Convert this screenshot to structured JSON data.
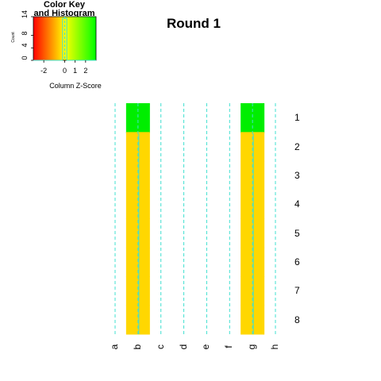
{
  "chart_data": {
    "type": "heatmap",
    "title": "Round 1",
    "columns": [
      "a",
      "b",
      "c",
      "d",
      "e",
      "f",
      "g",
      "h"
    ],
    "rows": [
      "1",
      "2",
      "3",
      "4",
      "5",
      "6",
      "7",
      "8"
    ],
    "colored_cells": [
      {
        "row": "1",
        "column": "b",
        "color": "#00ee00"
      },
      {
        "row": "1",
        "column": "g",
        "color": "#00ee00"
      },
      {
        "row": "2",
        "column": "b",
        "color": "#ffd700"
      },
      {
        "row": "2",
        "column": "g",
        "color": "#ffd700"
      },
      {
        "row": "3",
        "column": "b",
        "color": "#ffd700"
      },
      {
        "row": "3",
        "column": "g",
        "color": "#ffd700"
      },
      {
        "row": "4",
        "column": "b",
        "color": "#ffd700"
      },
      {
        "row": "4",
        "column": "g",
        "color": "#ffd700"
      },
      {
        "row": "5",
        "column": "b",
        "color": "#ffd700"
      },
      {
        "row": "5",
        "column": "g",
        "color": "#ffd700"
      },
      {
        "row": "6",
        "column": "b",
        "color": "#ffd700"
      },
      {
        "row": "6",
        "column": "g",
        "color": "#ffd700"
      },
      {
        "row": "7",
        "column": "b",
        "color": "#ffd700"
      },
      {
        "row": "7",
        "column": "g",
        "color": "#ffd700"
      },
      {
        "row": "8",
        "column": "b",
        "color": "#ffd700"
      },
      {
        "row": "8",
        "column": "g",
        "color": "#ffd700"
      }
    ],
    "trace_color": "#40e0d0",
    "color_key": {
      "title_line1": "Color Key",
      "title_line2": "and Histogram",
      "xlabel": "Column Z-Score",
      "ylabel": "Count",
      "x_ticks": [
        "-2",
        "0",
        "1",
        "2"
      ],
      "y_ticks": [
        "0",
        "4",
        "8",
        "14"
      ],
      "x_range": [
        -3,
        3
      ],
      "y_range": [
        0,
        14
      ],
      "gradient_colors": [
        "#ff0000",
        "#ffff00",
        "#00ff00"
      ]
    }
  }
}
